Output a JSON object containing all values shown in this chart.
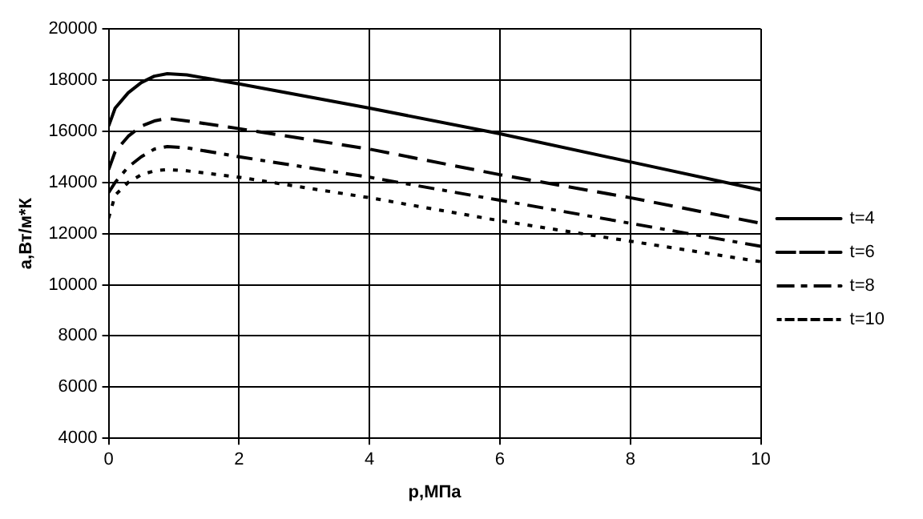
{
  "chart_data": {
    "type": "line",
    "xlabel": "p,МПа",
    "ylabel": "a,Вт/м*К",
    "x": [
      0,
      0.1,
      0.3,
      0.5,
      0.7,
      0.9,
      1.2,
      2,
      4,
      6,
      8,
      10
    ],
    "xlim": [
      0,
      10
    ],
    "xticks": [
      0,
      2,
      4,
      6,
      8,
      10
    ],
    "ylim": [
      4000,
      20000
    ],
    "yticks": [
      4000,
      6000,
      8000,
      10000,
      12000,
      14000,
      16000,
      18000,
      20000
    ],
    "grid": true,
    "legend": "right",
    "marker": "none",
    "series": [
      {
        "name": "t=4",
        "color": "#000000",
        "line_style": "solid",
        "values": [
          16200,
          16900,
          17500,
          17900,
          18150,
          18250,
          18200,
          17850,
          16900,
          15900,
          14800,
          13700
        ]
      },
      {
        "name": "t=6",
        "color": "#000000",
        "line_style": "dashed",
        "values": [
          14500,
          15200,
          15800,
          16200,
          16400,
          16500,
          16400,
          16100,
          15300,
          14300,
          13400,
          12400
        ]
      },
      {
        "name": "t=8",
        "color": "#000000",
        "line_style": "dashdot",
        "values": [
          13600,
          14000,
          14600,
          15000,
          15300,
          15400,
          15350,
          15000,
          14200,
          13300,
          12400,
          11500
        ]
      },
      {
        "name": "t=10",
        "color": "#000000",
        "line_style": "dotted",
        "values": [
          12600,
          13500,
          14000,
          14300,
          14450,
          14500,
          14450,
          14200,
          13400,
          12500,
          11700,
          10900
        ]
      }
    ]
  }
}
